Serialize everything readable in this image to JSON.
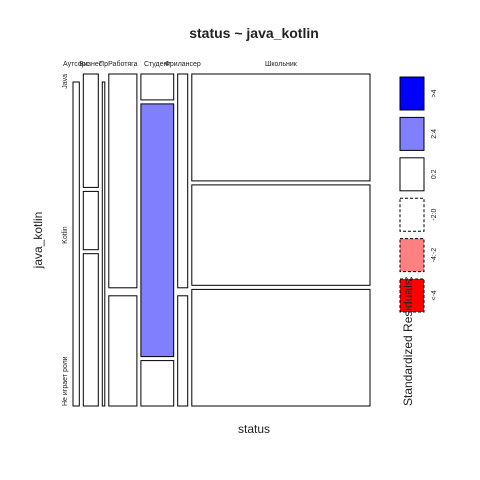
{
  "chart_data": {
    "type": "mosaic",
    "title": "status ~ java_kotlin",
    "xlabel": "status",
    "ylabel": "java_kotlin",
    "x_categories": [
      "Аутсорс",
      "Бизнес",
      "Пр",
      "Работяга",
      "Студент",
      "Фрилансер",
      "Школьник"
    ],
    "y_categories": [
      "Java",
      "Kotlin",
      "Не играет роли"
    ],
    "column_widths": [
      0.02,
      0.048,
      0.008,
      0.09,
      0.105,
      0.032,
      0.57
    ],
    "y_proportions": [
      [
        0.0,
        0.0,
        1.0
      ],
      [
        0.35,
        0.18,
        0.47
      ],
      [
        0.0,
        0.0,
        1.0
      ],
      [
        0.66,
        0.0,
        0.34
      ],
      [
        0.08,
        0.78,
        0.14
      ],
      [
        0.66,
        0.0,
        0.34
      ],
      [
        0.33,
        0.31,
        0.36
      ]
    ],
    "residual_class": [
      [
        "0:2",
        "0:2",
        "0:2"
      ],
      [
        "<-2:0",
        "<-2:0",
        "0:2"
      ],
      [
        "0:2",
        "0:2",
        "<-2:0"
      ],
      [
        "0:2",
        "0:2",
        "<-2:0"
      ],
      [
        "<-2:0",
        "2:4",
        "<-2:0"
      ],
      [
        "0:2",
        "0:2",
        "<-2:0"
      ],
      [
        "<-2:0",
        "<-2:0",
        "0:2"
      ]
    ],
    "legend": {
      "title": "Standardized Residuals:",
      "placement": "right",
      "entries": [
        {
          "label": ">4",
          "color": "#0000ff",
          "dashed": false
        },
        {
          "label": "2:4",
          "color": "#8080ff",
          "dashed": false
        },
        {
          "label": "0:2",
          "color": "#ffffff",
          "dashed": false
        },
        {
          "label": "-2:0",
          "color": "#ffffff",
          "dashed": true
        },
        {
          "label": "-4:-2",
          "color": "#ff8080",
          "dashed": true
        },
        {
          "label": "<-4",
          "color": "#ff0000",
          "dashed": true
        }
      ]
    }
  }
}
